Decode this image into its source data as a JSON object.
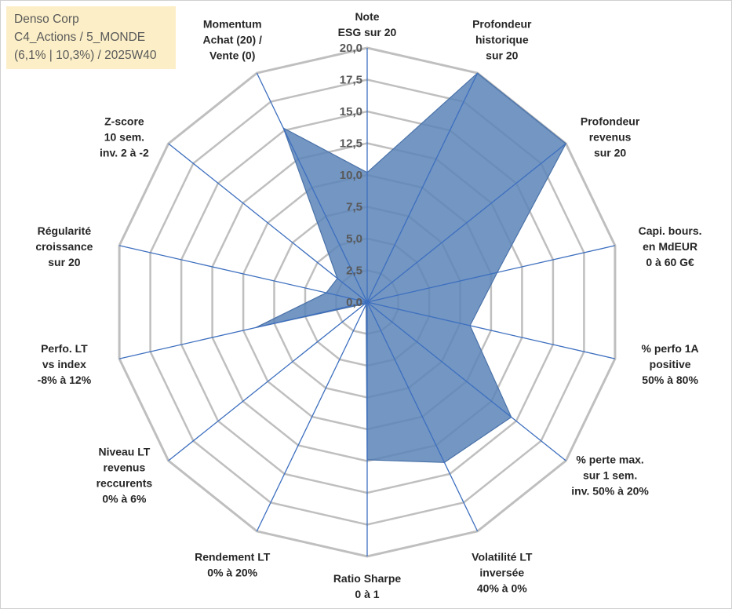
{
  "header": {
    "line1": "Denso Corp",
    "line2": "C4_Actions / 5_MONDE",
    "line3": "(6,1% | 10,3%) / 2025W40"
  },
  "colors": {
    "fill": "#5b84b9",
    "stroke": "#4a72a8",
    "spoke": "#3d6fbf",
    "grid": "#bfbfbf",
    "title_bg": "#fcefc7"
  },
  "chart_data": {
    "type": "radar",
    "ylim": [
      0,
      20
    ],
    "tick_values": [
      0,
      2.5,
      5,
      7.5,
      10,
      12.5,
      15,
      17.5,
      20
    ],
    "tick_labels": [
      "0,0",
      "2,5",
      "5,0",
      "7,5",
      "10,0",
      "12,5",
      "15,0",
      "17,5",
      "20,0"
    ],
    "axes": [
      [
        "Note",
        "ESG sur 20"
      ],
      [
        "Profondeur",
        "historique",
        "sur 20"
      ],
      [
        "Profondeur",
        "revenus",
        "sur 20"
      ],
      [
        "Capi. bours.",
        "en MdEUR",
        "0 à 60 G€"
      ],
      [
        "% perfo 1A",
        "positive",
        "50% à 80%"
      ],
      [
        "% perte max.",
        "sur 1 sem.",
        "inv. 50% à 20%"
      ],
      [
        "Volatilité LT",
        "inversée",
        "40% à 0%"
      ],
      [
        "Ratio Sharpe",
        "0 à 1"
      ],
      [
        "Rendement LT",
        "0% à 20%"
      ],
      [
        "Niveau LT",
        "revenus",
        "reccurents",
        "0% à 6%"
      ],
      [
        "Perfo. LT",
        "vs index",
        "-8% à 12%"
      ],
      [
        "Régularité",
        "croissance",
        "sur 20"
      ],
      [
        "Z-score",
        "10 sem.",
        "inv. 2 à -2"
      ],
      [
        "Momentum",
        "Achat (20) /",
        "Vente (0)"
      ]
    ],
    "series": [
      {
        "name": "Denso Corp",
        "values": [
          10.2,
          20,
          20,
          10.5,
          8.3,
          14.5,
          14.0,
          12.4,
          0.2,
          0.2,
          9.0,
          3.3,
          3.0,
          15.2
        ]
      }
    ]
  }
}
